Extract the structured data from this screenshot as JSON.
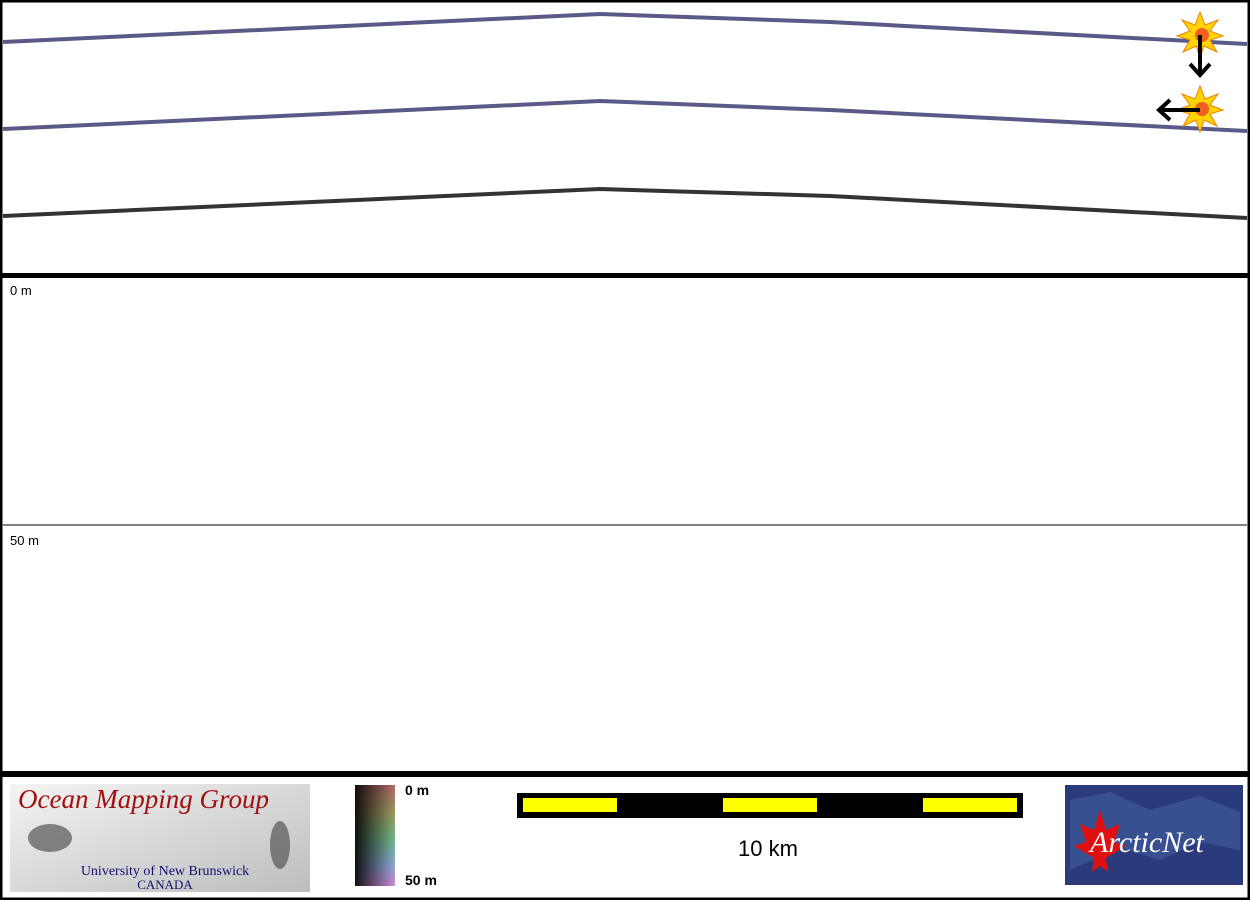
{
  "profile": {
    "depth_labels": [
      "0 m",
      "50 m"
    ]
  },
  "legend": {
    "top_label": "0 m",
    "bottom_label": "50 m"
  },
  "scale_bar": {
    "label": "10 km"
  },
  "logos": {
    "omg_title": "Ocean Mapping Group",
    "omg_university": "University of New Brunswick",
    "omg_country": "CANADA",
    "arcticnet": "ArcticNet"
  }
}
